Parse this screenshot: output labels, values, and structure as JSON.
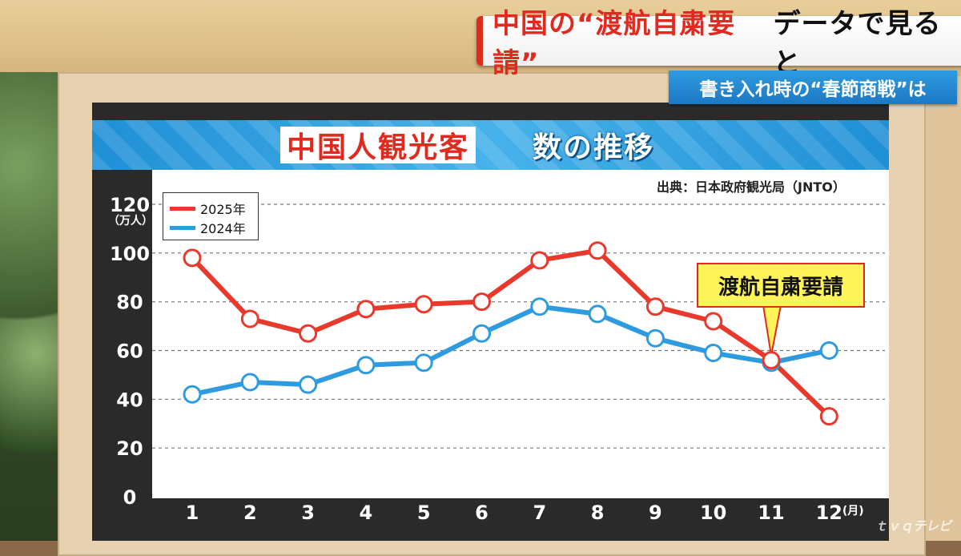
{
  "banner": {
    "main_red": "中国の“渡航自粛要請”",
    "main_black": "データで見ると",
    "sub": "書き入れ時の“春節商戦”は"
  },
  "watermark": "ｔｖｑテレビ",
  "chart_data": {
    "type": "line",
    "title_red": "中国人観光客",
    "title_white": "数の推移",
    "source": "出典：日本政府観光局（JNTO）",
    "ylabel_unit": "（万人）",
    "xlabel_unit": "(月)",
    "categories": [
      "1",
      "2",
      "3",
      "4",
      "5",
      "6",
      "7",
      "8",
      "9",
      "10",
      "11",
      "12"
    ],
    "ylim": [
      0,
      120
    ],
    "yticks": [
      0,
      20,
      40,
      60,
      80,
      100,
      120
    ],
    "series": [
      {
        "name": "2025年",
        "color": "#e8392c",
        "values": [
          98,
          73,
          67,
          77,
          79,
          80,
          97,
          101,
          78,
          72,
          56,
          33
        ]
      },
      {
        "name": "2024年",
        "color": "#2e9be0",
        "values": [
          42,
          47,
          46,
          54,
          55,
          67,
          78,
          75,
          65,
          59,
          55,
          60
        ]
      }
    ],
    "annotation": {
      "text": "渡航自粛要請",
      "month": "11"
    },
    "grid": true,
    "legend": "top-left"
  }
}
